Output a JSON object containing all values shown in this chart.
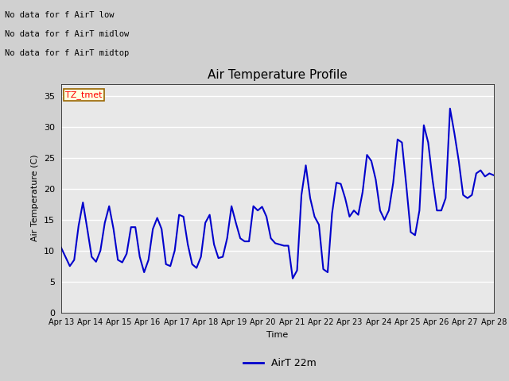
{
  "title": "Air Temperature Profile",
  "xlabel": "Time",
  "ylabel": "Air Temperature (C)",
  "ylim": [
    0,
    37
  ],
  "yticks": [
    0,
    5,
    10,
    15,
    20,
    25,
    30,
    35
  ],
  "line_color": "#0000cc",
  "line_width": 1.5,
  "legend_label": "AirT 22m",
  "annotations": [
    "No data for f AirT low",
    "No data for f AirT midlow",
    "No data for f AirT midtop"
  ],
  "tmet_label": "TZ_tmet",
  "fig_bg_color": "#d0d0d0",
  "plot_bg_color": "#e8e8e8",
  "x_tick_labels": [
    "Apr 13",
    "Apr 14",
    "Apr 15",
    "Apr 16",
    "Apr 17",
    "Apr 18",
    "Apr 19",
    "Apr 20",
    "Apr 21",
    "Apr 22",
    "Apr 23",
    "Apr 24",
    "Apr 25",
    "Apr 26",
    "Apr 27",
    "Apr 28"
  ],
  "temperature_data": [
    10.5,
    9.0,
    7.5,
    8.5,
    14.0,
    17.8,
    13.5,
    9.0,
    8.2,
    10.0,
    14.5,
    17.2,
    13.5,
    8.5,
    8.1,
    9.5,
    13.8,
    13.8,
    9.0,
    6.5,
    8.5,
    13.5,
    15.3,
    13.5,
    7.8,
    7.5,
    10.0,
    15.8,
    15.5,
    11.0,
    7.8,
    7.2,
    9.0,
    14.5,
    15.8,
    11.0,
    8.8,
    9.0,
    12.0,
    17.2,
    14.5,
    12.0,
    11.5,
    11.5,
    17.2,
    16.5,
    17.1,
    15.5,
    12.0,
    11.2,
    11.0,
    10.8,
    10.8,
    5.5,
    6.8,
    19.0,
    23.8,
    18.5,
    15.5,
    14.2,
    7.0,
    6.5,
    16.0,
    21.0,
    20.8,
    18.5,
    15.5,
    16.5,
    15.8,
    19.5,
    25.5,
    24.5,
    21.5,
    16.5,
    15.0,
    16.5,
    21.0,
    28.0,
    27.5,
    20.5,
    13.0,
    12.5,
    16.5,
    30.3,
    27.5,
    21.5,
    16.5,
    16.5,
    18.5,
    33.0,
    29.0,
    24.5,
    19.0,
    18.5,
    19.0,
    22.5,
    23.0,
    22.0,
    22.5,
    22.2
  ]
}
